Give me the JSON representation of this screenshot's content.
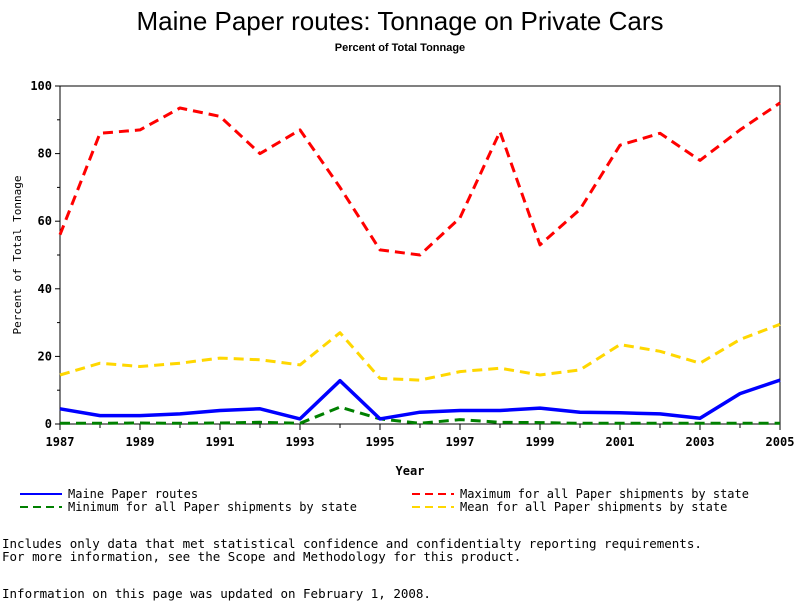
{
  "title": "Maine Paper routes: Tonnage on Private Cars",
  "subtitle": "Percent of Total Tonnage",
  "notes": {
    "line1": "Includes only data that met statistical confidence and confidentialty reporting requirements.",
    "line2": "For more information, see the Scope and Methodology for this product.",
    "updated": "Information on this page was updated on February 1, 2008."
  },
  "chart_data": {
    "type": "line",
    "title": "Maine Paper routes: Tonnage on Private Cars",
    "subtitle": "Percent of Total Tonnage",
    "xlabel": "Year",
    "ylabel": "Percent of Total Tonnage",
    "xlim": [
      1987,
      2005
    ],
    "ylim": [
      0,
      100
    ],
    "x_ticks": [
      1987,
      1989,
      1991,
      1993,
      1995,
      1997,
      1999,
      2001,
      2003,
      2005
    ],
    "y_ticks": [
      0,
      20,
      40,
      60,
      80,
      100
    ],
    "grid": false,
    "legend_position": "bottom",
    "x": [
      1987,
      1988,
      1989,
      1990,
      1991,
      1992,
      1993,
      1994,
      1995,
      1996,
      1997,
      1998,
      1999,
      2000,
      2001,
      2002,
      2003,
      2004,
      2005
    ],
    "series": [
      {
        "name": "Maine Paper routes",
        "color": "#0000ff",
        "style": "solid",
        "values": [
          4.5,
          2.5,
          2.5,
          3,
          4,
          4.5,
          1.5,
          12.8,
          1.5,
          3.5,
          4,
          4,
          4.7,
          3.5,
          3.3,
          3,
          1.7,
          9,
          13
        ]
      },
      {
        "name": "Maximum for all Paper shipments by state",
        "color": "#ff0000",
        "style": "dashed",
        "values": [
          56,
          86,
          87,
          93.5,
          91,
          80,
          87,
          70,
          51.5,
          50,
          61,
          86.5,
          53,
          63.5,
          82.5,
          86,
          78,
          87,
          95
        ]
      },
      {
        "name": "Minimum for all Paper shipments by state",
        "color": "#008000",
        "style": "dashed",
        "values": [
          0.2,
          0.2,
          0.3,
          0.2,
          0.3,
          0.5,
          0.2,
          5,
          1.5,
          0.2,
          1.3,
          0.5,
          0.4,
          0.2,
          0.2,
          0.2,
          0.2,
          0.2,
          0.2
        ]
      },
      {
        "name": "Mean for all Paper shipments by state",
        "color": "#ffd700",
        "style": "dashed",
        "values": [
          14.5,
          18,
          17,
          18,
          19.5,
          19,
          17.5,
          27,
          13.5,
          13,
          15.5,
          16.5,
          14.5,
          16,
          23.5,
          21.5,
          18,
          25,
          29.5
        ]
      }
    ]
  }
}
